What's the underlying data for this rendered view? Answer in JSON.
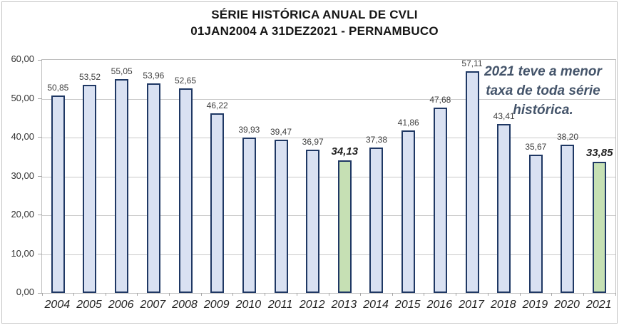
{
  "chart_data": {
    "type": "bar",
    "title": "SÉRIE HISTÓRICA ANUAL DE CVLI",
    "subtitle": "01JAN2004 A 31DEZ2021 - PERNAMBUCO",
    "categories": [
      "2004",
      "2005",
      "2006",
      "2007",
      "2008",
      "2009",
      "2010",
      "2011",
      "2012",
      "2013",
      "2014",
      "2015",
      "2016",
      "2017",
      "2018",
      "2019",
      "2020",
      "2021"
    ],
    "values": [
      50.85,
      53.52,
      55.05,
      53.96,
      52.65,
      46.22,
      39.93,
      39.47,
      36.97,
      34.13,
      37.38,
      41.86,
      47.68,
      57.11,
      43.41,
      35.67,
      38.2,
      33.85
    ],
    "value_labels": [
      "50,85",
      "53,52",
      "55,05",
      "53,96",
      "52,65",
      "46,22",
      "39,93",
      "39,47",
      "36,97",
      "34,13",
      "37,38",
      "41,86",
      "47,68",
      "57,11",
      "43,41",
      "35,67",
      "38,20",
      "33,85"
    ],
    "highlighted_categories": [
      "2013",
      "2021"
    ],
    "ylim": [
      0,
      60
    ],
    "ytick_labels": [
      "60,00",
      "50,00",
      "40,00",
      "30,00",
      "20,00",
      "10,00",
      "0,00"
    ],
    "grid": true,
    "legend": "none",
    "annotation": {
      "text": "2021 teve a menor taxa de toda série histórica.",
      "lines": [
        "2021 teve a menor",
        "taxa de toda série",
        "histórica."
      ],
      "color": "#44546A"
    },
    "colors": {
      "bar_fill": "#D9E1F2",
      "bar_border": "#1F3864",
      "highlight_fill": "#C6E0B4",
      "gridline": "#C9C9C9",
      "axis": "#BFBFBF"
    }
  }
}
